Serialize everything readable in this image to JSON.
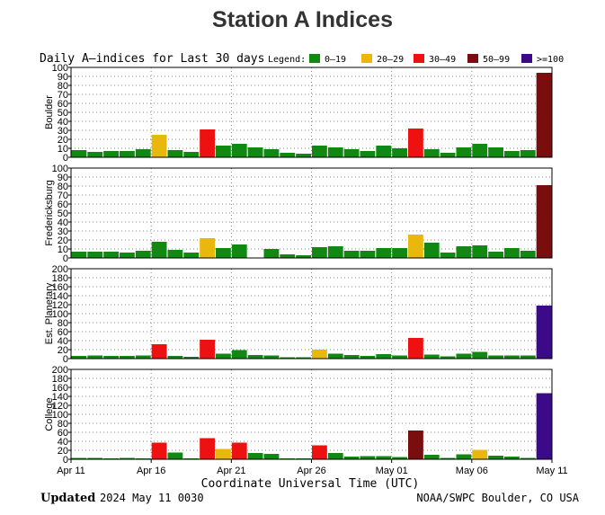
{
  "page": {
    "title": "Station A Indices"
  },
  "chart_data": {
    "type": "bar",
    "title": "Daily A—indices for Last 30 days",
    "legend": {
      "label": "Legend:",
      "entries": [
        {
          "label": "0—19",
          "color": "#118811"
        },
        {
          "label": "20—29",
          "color": "#e8b80c"
        },
        {
          "label": "30—49",
          "color": "#ee1111"
        },
        {
          "label": "50—99",
          "color": "#7a0d0d"
        },
        {
          "label": ">=100",
          "color": "#3a0a88"
        }
      ]
    },
    "categories": [
      "Apr 11",
      "Apr 12",
      "Apr 13",
      "Apr 14",
      "Apr 15",
      "Apr 16",
      "Apr 17",
      "Apr 18",
      "Apr 19",
      "Apr 20",
      "Apr 21",
      "Apr 22",
      "Apr 23",
      "Apr 24",
      "Apr 25",
      "Apr 26",
      "Apr 27",
      "Apr 28",
      "Apr 29",
      "Apr 30",
      "May 01",
      "May 02",
      "May 03",
      "May 04",
      "May 05",
      "May 06",
      "May 07",
      "May 08",
      "May 09",
      "May 10"
    ],
    "x_tick_labels": [
      "Apr 11",
      "Apr 16",
      "Apr 21",
      "Apr 26",
      "May 01",
      "May 06",
      "May 11"
    ],
    "xlabel": "Coordinate Universal Time (UTC)",
    "series": [
      {
        "name": "Boulder",
        "ylim": [
          0,
          100
        ],
        "yticks": [
          0,
          10,
          20,
          30,
          40,
          50,
          60,
          70,
          80,
          90,
          100
        ],
        "values": [
          8,
          6,
          7,
          7,
          9,
          25,
          8,
          6,
          31,
          13,
          15,
          11,
          9,
          5,
          4,
          13,
          11,
          9,
          7,
          13,
          10,
          32,
          9,
          5,
          11,
          15,
          11,
          7,
          8,
          94
        ]
      },
      {
        "name": "Fredericksburg",
        "ylim": [
          0,
          100
        ],
        "yticks": [
          0,
          10,
          20,
          30,
          40,
          50,
          60,
          70,
          80,
          90,
          100
        ],
        "values": [
          7,
          7,
          7,
          6,
          8,
          18,
          9,
          6,
          22,
          11,
          15,
          0,
          10,
          4,
          3,
          12,
          13,
          8,
          8,
          11,
          11,
          26,
          17,
          6,
          13,
          14,
          7,
          11,
          8,
          81
        ]
      },
      {
        "name": "Est. Planetary",
        "ylim": [
          0,
          200
        ],
        "yticks": [
          0,
          20,
          40,
          60,
          80,
          100,
          120,
          140,
          160,
          180,
          200
        ],
        "values": [
          6,
          7,
          6,
          6,
          7,
          32,
          6,
          4,
          42,
          11,
          19,
          8,
          7,
          3,
          3,
          20,
          11,
          8,
          6,
          10,
          7,
          46,
          9,
          5,
          11,
          15,
          7,
          7,
          7,
          118
        ]
      },
      {
        "name": "College",
        "ylim": [
          0,
          200
        ],
        "yticks": [
          0,
          20,
          40,
          60,
          80,
          100,
          120,
          140,
          160,
          180,
          200
        ],
        "values": [
          3,
          3,
          2,
          3,
          2,
          37,
          15,
          2,
          47,
          23,
          37,
          14,
          12,
          2,
          2,
          31,
          14,
          6,
          7,
          7,
          5,
          64,
          10,
          3,
          11,
          21,
          8,
          6,
          3,
          147
        ]
      }
    ],
    "grid": true
  },
  "footer": {
    "updated_label": "Updated",
    "updated_value": "2024 May 11 0030",
    "source": "NOAA/SWPC Boulder, CO USA"
  }
}
